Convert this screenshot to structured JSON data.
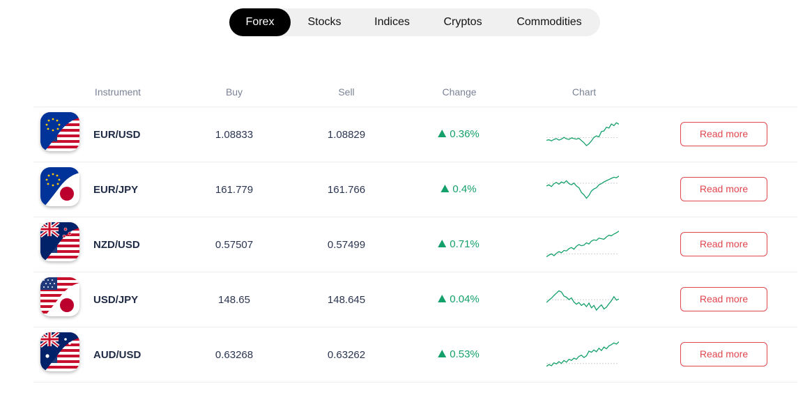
{
  "tabs": [
    {
      "label": "Forex",
      "active": true
    },
    {
      "label": "Stocks",
      "active": false
    },
    {
      "label": "Indices",
      "active": false
    },
    {
      "label": "Cryptos",
      "active": false
    },
    {
      "label": "Commodities",
      "active": false
    }
  ],
  "columns": {
    "instrument": "Instrument",
    "buy": "Buy",
    "sell": "Sell",
    "change": "Change",
    "chart": "Chart"
  },
  "colors": {
    "positive": "#14a06a",
    "button": "#e0464e",
    "active_tab": "#000000"
  },
  "rows": [
    {
      "symbol": "EUR/USD",
      "flag_icon": "eu-us-flag-icon",
      "buy": "1.08833",
      "sell": "1.08829",
      "change": "0.36%",
      "direction": "up",
      "chart": [
        0.3,
        0.32,
        0.28,
        0.33,
        0.36,
        0.31,
        0.34,
        0.4,
        0.35,
        0.33,
        0.38,
        0.36,
        0.34,
        0.37,
        0.29,
        0.22,
        0.12,
        0.18,
        0.28,
        0.4,
        0.45,
        0.42,
        0.6,
        0.62,
        0.75,
        0.72,
        0.86,
        0.8,
        0.9,
        0.85
      ],
      "read_more": "Read more"
    },
    {
      "symbol": "EUR/JPY",
      "flag_icon": "eu-jp-flag-icon",
      "buy": "161.779",
      "sell": "161.766",
      "change": "0.4%",
      "direction": "up",
      "chart": [
        0.62,
        0.66,
        0.6,
        0.7,
        0.74,
        0.68,
        0.76,
        0.72,
        0.8,
        0.7,
        0.66,
        0.72,
        0.62,
        0.56,
        0.4,
        0.32,
        0.2,
        0.3,
        0.45,
        0.52,
        0.56,
        0.66,
        0.7,
        0.76,
        0.8,
        0.84,
        0.88,
        0.92,
        0.9,
        0.96
      ],
      "read_more": "Read more"
    },
    {
      "symbol": "NZD/USD",
      "flag_icon": "nz-us-flag-icon",
      "buy": "0.57507",
      "sell": "0.57499",
      "change": "0.71%",
      "direction": "up",
      "chart": [
        0.08,
        0.14,
        0.18,
        0.12,
        0.2,
        0.26,
        0.22,
        0.3,
        0.28,
        0.36,
        0.4,
        0.34,
        0.44,
        0.5,
        0.46,
        0.48,
        0.56,
        0.52,
        0.62,
        0.66,
        0.64,
        0.72,
        0.7,
        0.68,
        0.76,
        0.82,
        0.8,
        0.86,
        0.9,
        0.96
      ],
      "read_more": "Read more"
    },
    {
      "symbol": "USD/JPY",
      "flag_icon": "us-jp-flag-icon",
      "buy": "148.65",
      "sell": "148.645",
      "change": "0.04%",
      "direction": "up",
      "chart": [
        0.4,
        0.48,
        0.55,
        0.64,
        0.72,
        0.8,
        0.76,
        0.62,
        0.58,
        0.5,
        0.56,
        0.42,
        0.34,
        0.4,
        0.3,
        0.36,
        0.26,
        0.38,
        0.22,
        0.3,
        0.14,
        0.24,
        0.32,
        0.18,
        0.24,
        0.36,
        0.46,
        0.6,
        0.48,
        0.52
      ],
      "read_more": "Read more"
    },
    {
      "symbol": "AUD/USD",
      "flag_icon": "au-us-flag-icon",
      "buy": "0.63268",
      "sell": "0.63262",
      "change": "0.53%",
      "direction": "up",
      "chart": [
        0.1,
        0.16,
        0.12,
        0.22,
        0.18,
        0.26,
        0.2,
        0.3,
        0.24,
        0.34,
        0.3,
        0.38,
        0.34,
        0.44,
        0.48,
        0.4,
        0.46,
        0.62,
        0.58,
        0.66,
        0.6,
        0.72,
        0.64,
        0.76,
        0.7,
        0.8,
        0.84,
        0.9,
        0.86,
        0.94
      ],
      "read_more": "Read more"
    }
  ]
}
